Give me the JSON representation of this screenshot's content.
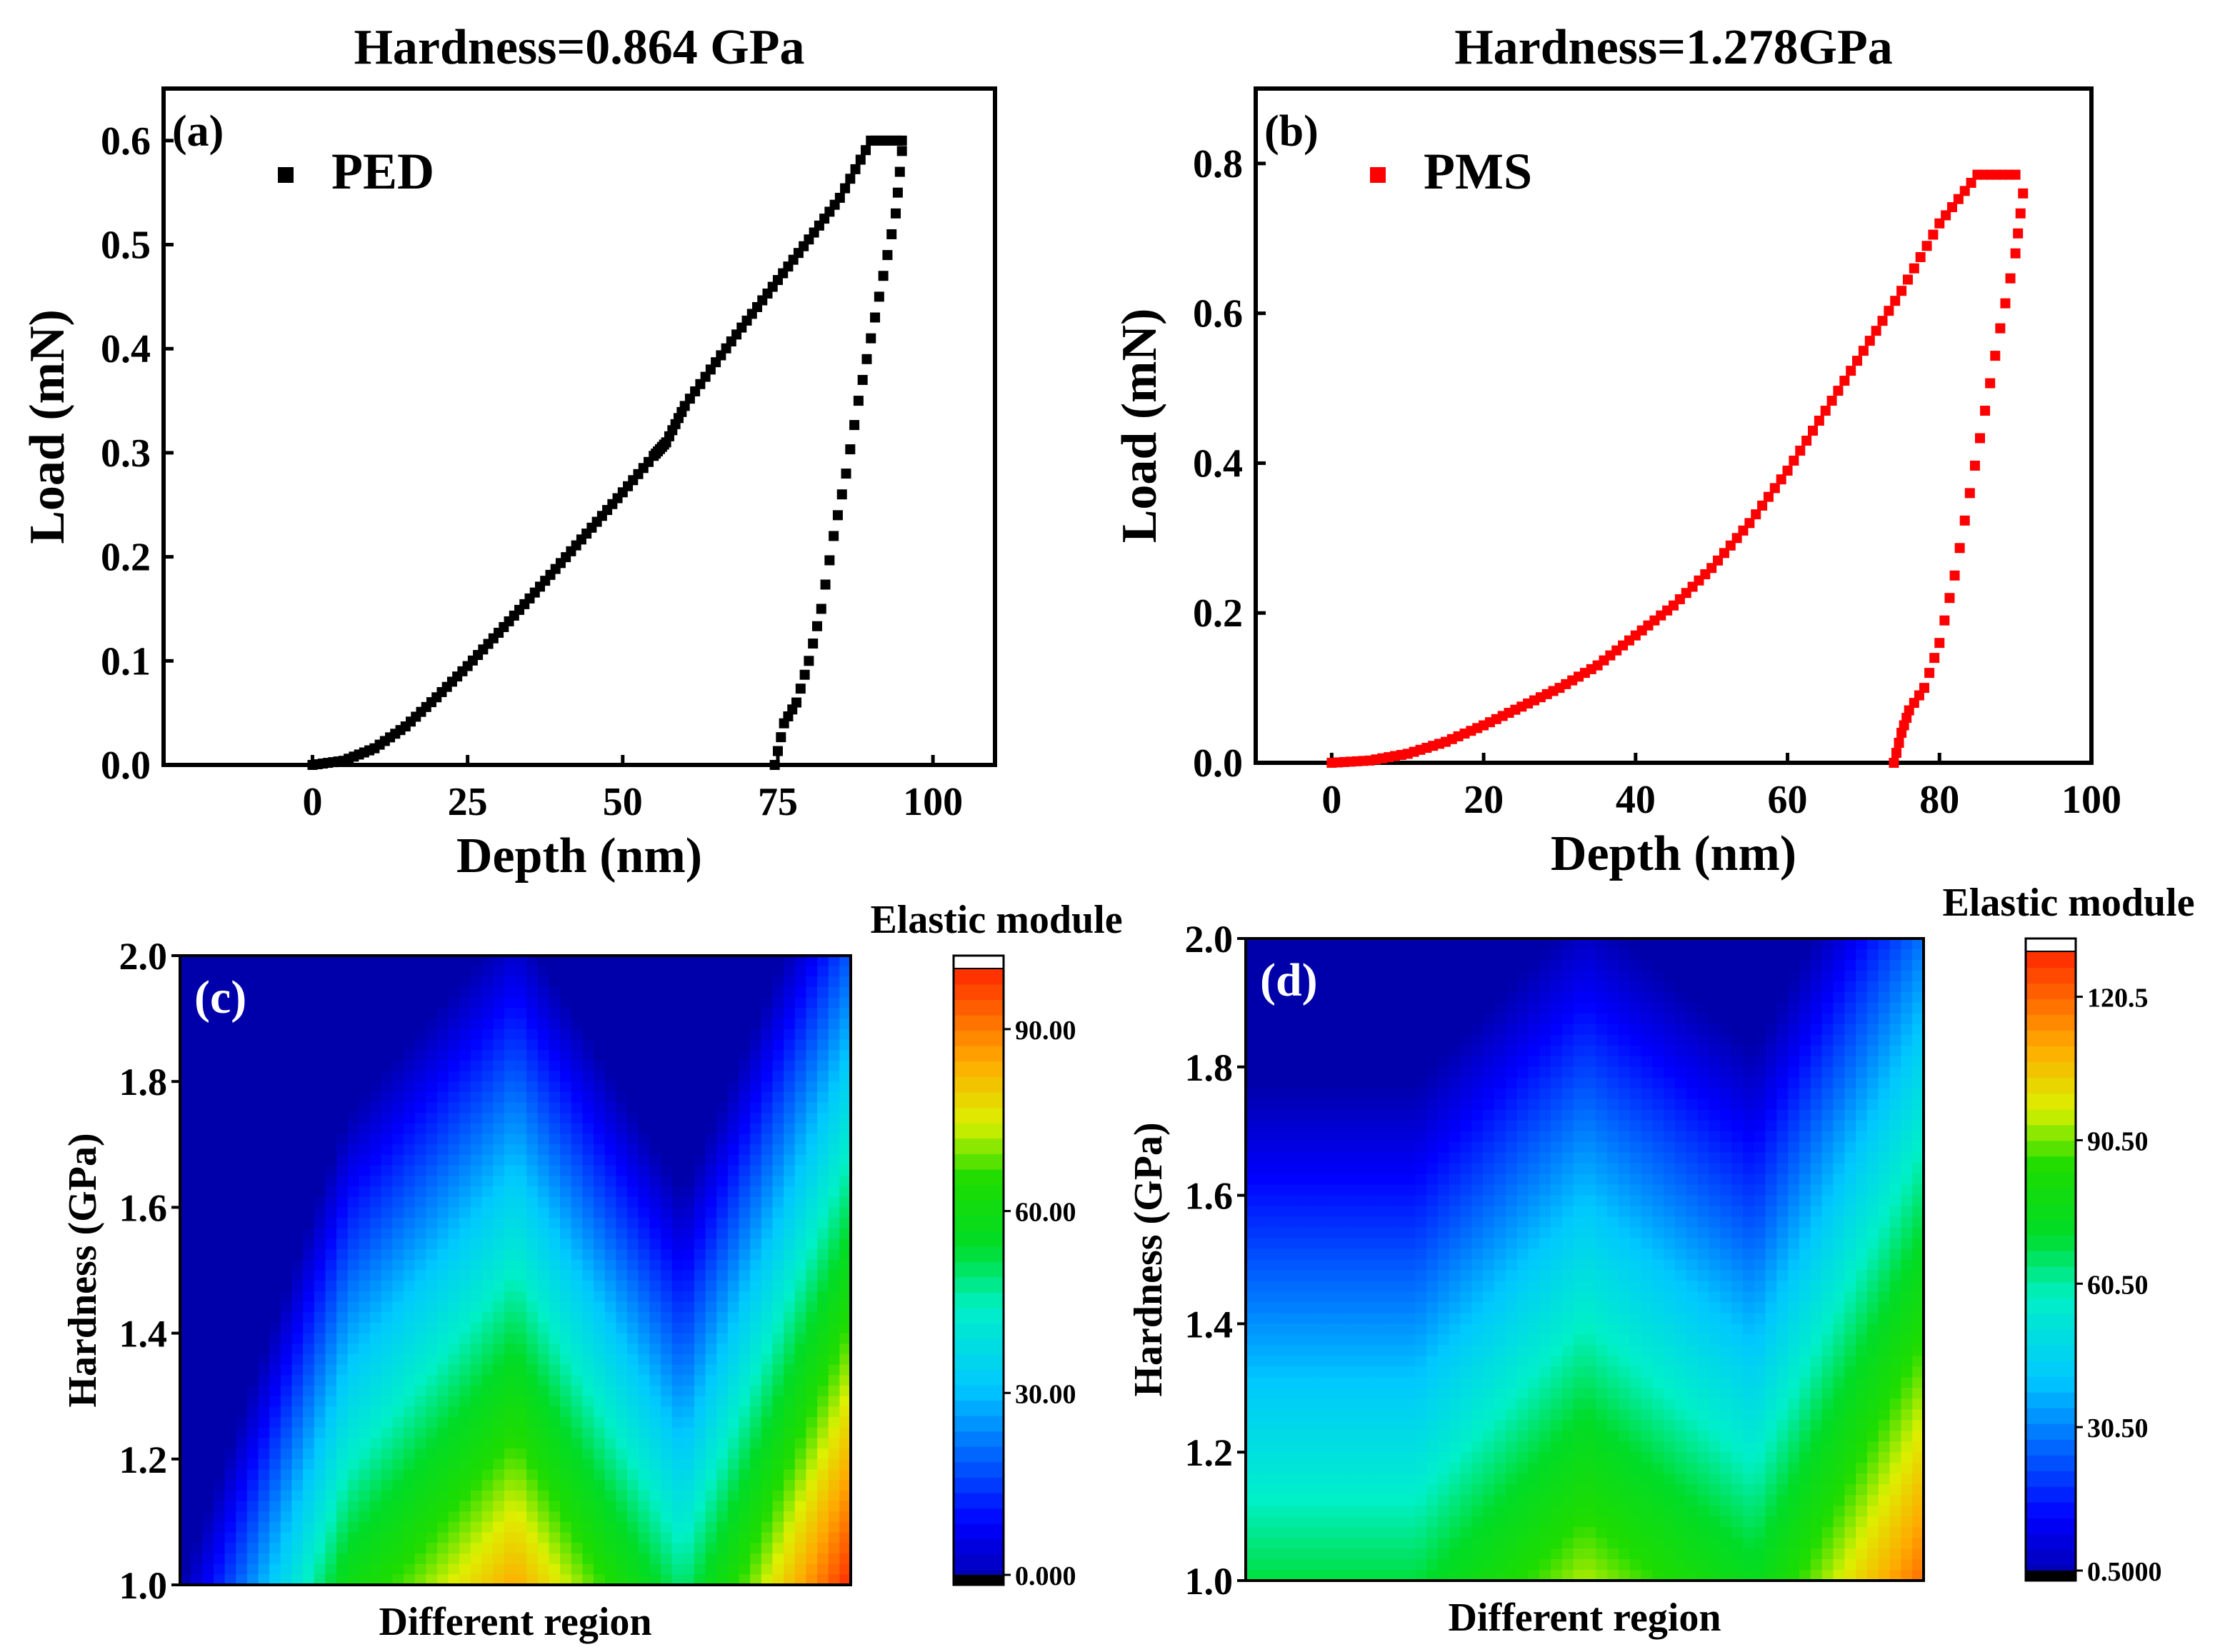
{
  "chart_data": [
    {
      "panel": "(a)",
      "type": "scatter",
      "title": "Hardness=0.864 GPa",
      "xlabel": "Depth (nm)",
      "ylabel": "Load (mN)",
      "xlim": [
        -24,
        110
      ],
      "ylim": [
        0,
        0.65
      ],
      "xticks": [
        0,
        25,
        50,
        75,
        100
      ],
      "yticks": [
        0.0,
        0.1,
        0.2,
        0.3,
        0.4,
        0.5,
        0.6
      ],
      "xtick_labels": [
        "0",
        "25",
        "50",
        "75",
        "100"
      ],
      "ytick_labels": [
        "0.0",
        "0.1",
        "0.2",
        "0.3",
        "0.4",
        "0.5",
        "0.6"
      ],
      "color": "#000000",
      "series": [
        {
          "name": "PED",
          "loading": [
            [
              0,
              0
            ],
            [
              5,
              0.004
            ],
            [
              10,
              0.016
            ],
            [
              15,
              0.037
            ],
            [
              20,
              0.065
            ],
            [
              25,
              0.095
            ],
            [
              30,
              0.127
            ],
            [
              35,
              0.16
            ],
            [
              40,
              0.194
            ],
            [
              45,
              0.228
            ],
            [
              50,
              0.262
            ],
            [
              55,
              0.297
            ],
            [
              57,
              0.31
            ],
            [
              60,
              0.345
            ],
            [
              65,
              0.387
            ],
            [
              70,
              0.427
            ],
            [
              75,
              0.466
            ],
            [
              80,
              0.505
            ],
            [
              85,
              0.545
            ],
            [
              90,
              0.6
            ],
            [
              95,
              0.6
            ]
          ],
          "unloading": [
            [
              95,
              0.59
            ],
            [
              94,
              0.53
            ],
            [
              92,
              0.47
            ],
            [
              90,
              0.41
            ],
            [
              88,
              0.35
            ],
            [
              86,
              0.28
            ],
            [
              84,
              0.22
            ],
            [
              82,
              0.15
            ],
            [
              80,
              0.1
            ],
            [
              78,
              0.06
            ],
            [
              76,
              0.04
            ],
            [
              74.5,
              0.0
            ]
          ]
        }
      ]
    },
    {
      "panel": "(b)",
      "type": "scatter",
      "title": "Hardness=1.278GPa",
      "xlabel": "Depth (nm)",
      "ylabel": "Load (mN)",
      "xlim": [
        -10,
        100
      ],
      "ylim": [
        0,
        0.9
      ],
      "xticks": [
        0,
        20,
        40,
        60,
        80,
        100
      ],
      "yticks": [
        0.0,
        0.2,
        0.4,
        0.6,
        0.8
      ],
      "xtick_labels": [
        "0",
        "20",
        "40",
        "60",
        "80",
        "100"
      ],
      "ytick_labels": [
        "0.0",
        "0.2",
        "0.4",
        "0.6",
        "0.8"
      ],
      "color": "#ff0000",
      "series": [
        {
          "name": "PMS",
          "loading": [
            [
              0,
              0
            ],
            [
              5,
              0.003
            ],
            [
              10,
              0.012
            ],
            [
              15,
              0.028
            ],
            [
              20,
              0.05
            ],
            [
              25,
              0.075
            ],
            [
              30,
              0.1
            ],
            [
              35,
              0.13
            ],
            [
              40,
              0.17
            ],
            [
              45,
              0.21
            ],
            [
              50,
              0.26
            ],
            [
              55,
              0.32
            ],
            [
              60,
              0.39
            ],
            [
              65,
              0.47
            ],
            [
              70,
              0.55
            ],
            [
              75,
              0.63
            ],
            [
              80,
              0.72
            ],
            [
              85,
              0.785
            ],
            [
              90,
              0.785
            ]
          ],
          "unloading": [
            [
              91,
              0.76
            ],
            [
              90,
              0.68
            ],
            [
              88,
              0.58
            ],
            [
              86,
              0.47
            ],
            [
              84,
              0.36
            ],
            [
              82,
              0.25
            ],
            [
              80,
              0.16
            ],
            [
              78,
              0.1
            ],
            [
              76,
              0.07
            ],
            [
              75,
              0.04
            ],
            [
              74,
              0.0
            ]
          ]
        }
      ]
    },
    {
      "panel": "(c)",
      "type": "heatmap",
      "xlabel": "Different region",
      "ylabel": "Hardness (GPa)",
      "ylim": [
        1.0,
        2.0
      ],
      "yticks": [
        1.0,
        1.2,
        1.4,
        1.6,
        1.8,
        2.0
      ],
      "ytick_labels": [
        "1.0",
        "1.2",
        "1.4",
        "1.6",
        "1.8",
        "2.0"
      ],
      "colorbar_title": "Elastic module",
      "colorbar_range": [
        0,
        100
      ],
      "colorbar_ticks": [
        0,
        30,
        60,
        90
      ],
      "colorbar_labels": [
        "0.000",
        "30.00",
        "60.00",
        "90.00"
      ],
      "x_regions": [
        0,
        1,
        2,
        3,
        4
      ],
      "hot_column_values": [
        0,
        60,
        85,
        50,
        100
      ],
      "falloff_rate": 80
    },
    {
      "panel": "(d)",
      "type": "heatmap",
      "xlabel": "Different region",
      "ylabel": "Hardness (GPa)",
      "ylim": [
        1.0,
        2.0
      ],
      "yticks": [
        1.0,
        1.2,
        1.4,
        1.6,
        1.8,
        2.0
      ],
      "ytick_labels": [
        "1.0",
        "1.2",
        "1.4",
        "1.6",
        "1.8",
        "2.0"
      ],
      "colorbar_title": "Elastic module",
      "colorbar_range": [
        0.5,
        130
      ],
      "colorbar_ticks": [
        0.5,
        30.5,
        60.5,
        90.5,
        120.5
      ],
      "colorbar_labels": [
        "0.5000",
        "30.50",
        "60.50",
        "90.50",
        "120.5"
      ],
      "x_regions": [
        0,
        1,
        2,
        3,
        4
      ],
      "hot_column_values": [
        70,
        70,
        95,
        75,
        120
      ],
      "falloff_rate": 90
    }
  ]
}
